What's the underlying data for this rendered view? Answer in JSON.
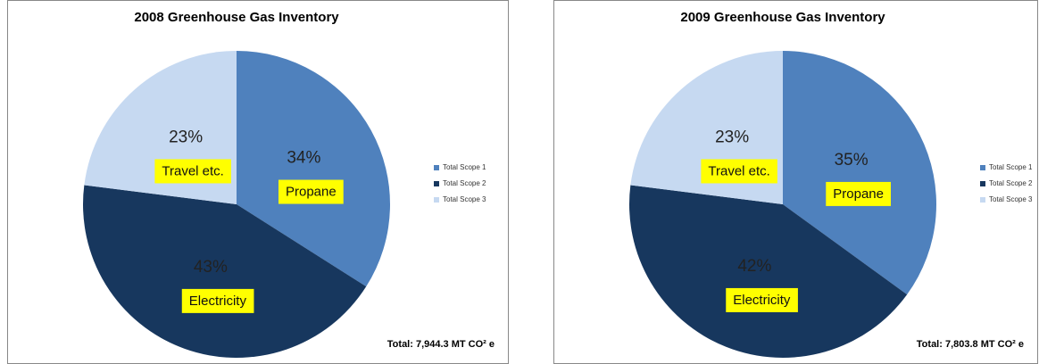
{
  "chart_data": [
    {
      "type": "pie",
      "title": "2008 Greenhouse Gas Inventory",
      "categories": [
        "Total Scope 1",
        "Total Scope 2",
        "Total Scope 3"
      ],
      "values": [
        34,
        43,
        23
      ],
      "value_labels": [
        "34%",
        "43%",
        "23%"
      ],
      "slice_labels": [
        "Propane",
        "Electricity",
        "Travel etc."
      ],
      "colors": [
        "#4f81bd",
        "#17375e",
        "#c6d9f1"
      ],
      "annotation": "Total:  7,944.3 MT CO² e",
      "legend": "right"
    },
    {
      "type": "pie",
      "title": "2009 Greenhouse Gas Inventory",
      "categories": [
        "Total Scope 1",
        "Total Scope 2",
        "Total Scope 3"
      ],
      "values": [
        35,
        42,
        23
      ],
      "value_labels": [
        "35%",
        "42%",
        "23%"
      ],
      "slice_labels": [
        "Propane",
        "Electricity",
        "Travel etc."
      ],
      "colors": [
        "#4f81bd",
        "#17375e",
        "#c6d9f1"
      ],
      "annotation": "Total:  7,803.8 MT CO² e",
      "legend": "right"
    }
  ]
}
